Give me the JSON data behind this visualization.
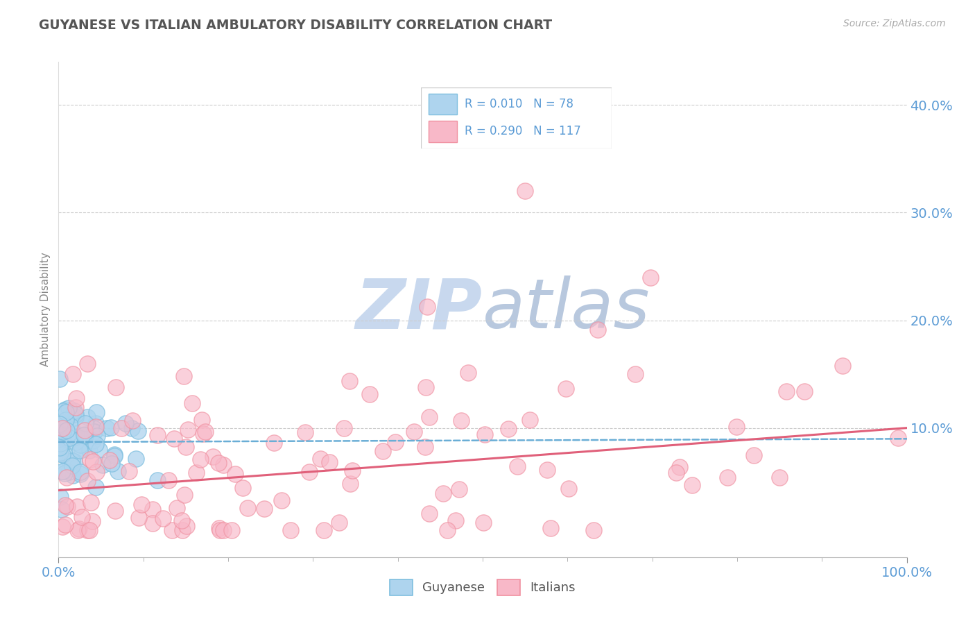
{
  "title": "GUYANESE VS ITALIAN AMBULATORY DISABILITY CORRELATION CHART",
  "source": "Source: ZipAtlas.com",
  "ylabel": "Ambulatory Disability",
  "xlim": [
    0.0,
    1.0
  ],
  "ylim": [
    -0.02,
    0.44
  ],
  "ytick_positions": [
    0.1,
    0.2,
    0.3,
    0.4
  ],
  "ytick_labels": [
    "10.0%",
    "20.0%",
    "30.0%",
    "40.0%"
  ],
  "xtick_positions": [
    0.0,
    1.0
  ],
  "xtick_labels": [
    "0.0%",
    "100.0%"
  ],
  "legend_R_blue": "R = 0.010",
  "legend_N_blue": "N = 78",
  "legend_R_pink": "R = 0.290",
  "legend_N_pink": "N = 117",
  "blue_color": "#7fbfdf",
  "pink_color": "#f090a0",
  "blue_fill": "#aed4ee",
  "pink_fill": "#f8b8c8",
  "title_color": "#555555",
  "axis_label_color": "#5b9bd5",
  "watermark_color": "#dde8f5",
  "background_color": "#ffffff",
  "grid_color": "#cccccc",
  "blue_trend_color": "#6aaed6",
  "pink_trend_color": "#e0607a",
  "seed": 99,
  "n_blue": 78,
  "n_pink": 117
}
